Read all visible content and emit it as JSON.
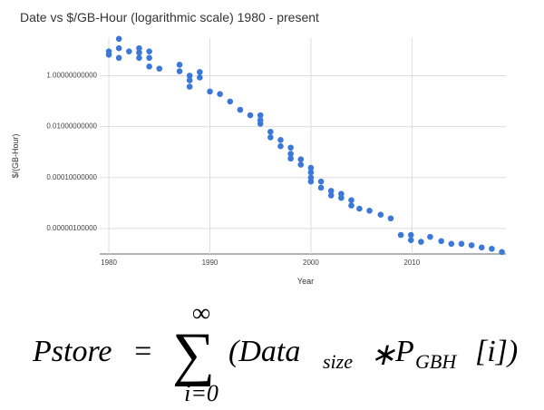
{
  "chart_data": {
    "type": "scatter",
    "title": "Date vs $/GB-Hour (logarithmic scale) 1980 - present",
    "x_label": "Year",
    "y_label": "$/(GB-Hour)",
    "x": [
      1980,
      1980,
      1981,
      1981,
      1981,
      1982,
      1983,
      1983,
      1983,
      1984,
      1984,
      1984,
      1985,
      1987,
      1987,
      1988,
      1988,
      1988,
      1989,
      1989,
      1990,
      1991,
      1992,
      1993,
      1994,
      1995,
      1995,
      1995,
      1996,
      1996,
      1997,
      1997,
      1998,
      1998,
      1998,
      1999,
      1999,
      2000,
      2000,
      2000,
      2000,
      2001,
      2001,
      2002,
      2002,
      2003,
      2003,
      2004,
      2004,
      2004.8,
      2005.8,
      2006.9,
      2007.9,
      2008.9,
      2009.9,
      2009.9,
      2010.9,
      2011.8,
      2012.9,
      2013.9,
      2014.9,
      2015.9,
      2016.9,
      2017.9,
      2018.9
    ],
    "values": [
      9,
      6.7,
      28,
      12,
      5,
      9,
      12,
      8,
      5,
      9,
      5,
      2.3,
      1.9,
      2.7,
      1.5,
      1,
      0.66,
      0.37,
      1.4,
      0.85,
      0.24,
      0.19,
      0.097,
      0.046,
      0.028,
      0.028,
      0.018,
      0.013,
      0.0063,
      0.0038,
      0.003,
      0.0017,
      0.0015,
      0.00086,
      0.00056,
      0.00052,
      0.00032,
      0.00024,
      0.00016,
      0.0001,
      7e-05,
      7e-05,
      4e-05,
      3e-05,
      2e-05,
      2.3e-05,
      1.6e-05,
      1.3e-05,
      8e-06,
      6e-06,
      5e-06,
      3.5e-06,
      2.5e-06,
      5.6e-07,
      5.6e-07,
      3.5e-07,
      3e-07,
      4.7e-07,
      3.2e-07,
      2.5e-07,
      2.5e-07,
      2.2e-07,
      1.8e-07,
      1.6e-07,
      1.2e-07
    ],
    "color": "#3c78d8",
    "xlim": [
      1979.1,
      2019.3
    ],
    "xticks": [
      1980,
      1990,
      2000,
      2010
    ],
    "ylim": [
      1e-07,
      30
    ],
    "log_y": true,
    "yticks": [
      {
        "value": 1,
        "label": "1.00000000000"
      },
      {
        "value": 0.01,
        "label": "0.01000000000"
      },
      {
        "value": 0.0001,
        "label": "0.00010000000"
      },
      {
        "value": 1e-06,
        "label": "0.00000100000"
      }
    ],
    "grid": true
  },
  "formula": {
    "lhs": "Pstore",
    "equals": "=",
    "sum": "∑",
    "upper": "∞",
    "lower": "i=0",
    "body": "(Data",
    "body_sub": "size",
    "times": "∗",
    "price": "P",
    "price_sub": "GBH",
    "index": "[i])"
  }
}
